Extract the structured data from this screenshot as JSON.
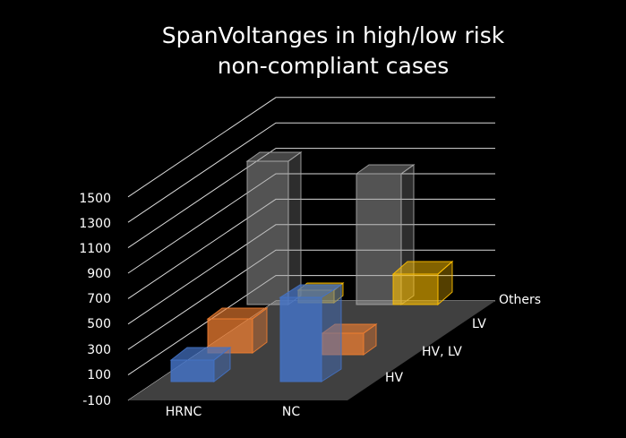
{
  "chart_data": {
    "type": "bar3d",
    "title_lines": [
      "SpanVoltanges in high/low risk",
      "non-compliant cases"
    ],
    "categories": [
      "HRNC",
      "NC"
    ],
    "series": [
      {
        "name": "HV",
        "color": "#4472C4",
        "values": [
          80,
          600
        ]
      },
      {
        "name": "HV, LV",
        "color": "#ED7D31",
        "values": [
          150,
          80
        ]
      },
      {
        "name": "LV",
        "color": "#FFC000",
        "values": [
          0,
          0
        ]
      },
      {
        "name": "Others",
        "color": "#A5A5A5",
        "values": [
          1100,
          1080
        ]
      }
    ],
    "extra_bars": [
      {
        "category": "Others_yellow",
        "series": "Others",
        "color": "#FFC000",
        "value": 200
      }
    ],
    "y_ticks": [
      "1500",
      "1300",
      "1100",
      "900",
      "700",
      "500",
      "300",
      "100",
      "-100"
    ],
    "ylim": [
      -100,
      1500
    ],
    "grid": true,
    "depth_labels": [
      "Others",
      "LV",
      "HV, LV",
      "HV"
    ]
  }
}
